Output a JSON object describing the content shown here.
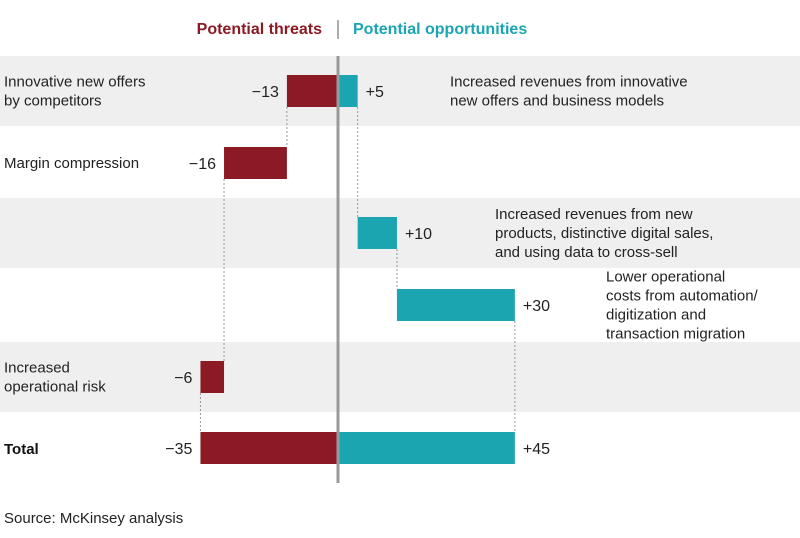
{
  "chart_data": {
    "type": "bar",
    "legend": {
      "threats": "Potential threats",
      "divider": "|",
      "opportunities": "Potential opportunities"
    },
    "colors": {
      "threat": "#8b1a24",
      "opportunity": "#1aa5b0",
      "band": "#efefef",
      "axis": "#9a9a9a",
      "connector": "#9a9a9a"
    },
    "threats": [
      {
        "label": [
          "Innovative new offers",
          "by competitors"
        ],
        "value": -13,
        "value_label": "−13"
      },
      {
        "label": [
          "Margin compression"
        ],
        "value": -16,
        "value_label": "−16"
      },
      {
        "label": [
          "Increased",
          "operational risk"
        ],
        "value": -6,
        "value_label": "−6"
      }
    ],
    "opportunities": [
      {
        "label": [
          "Increased revenues from innovative",
          "new offers and business models"
        ],
        "value": 5,
        "value_label": "+5"
      },
      {
        "label": [
          "Increased revenues from new",
          "products, distinctive digital sales,",
          "and using data to cross-sell"
        ],
        "value": 10,
        "value_label": "+10"
      },
      {
        "label": [
          "Lower operational",
          "costs from automation/",
          "digitization and",
          "transaction migration"
        ],
        "value": 30,
        "value_label": "+30"
      }
    ],
    "total": {
      "label": "Total",
      "threats": -35,
      "threats_label": "−35",
      "opportunities": 45,
      "opportunities_label": "+45"
    }
  },
  "source": "Source: McKinsey analysis"
}
